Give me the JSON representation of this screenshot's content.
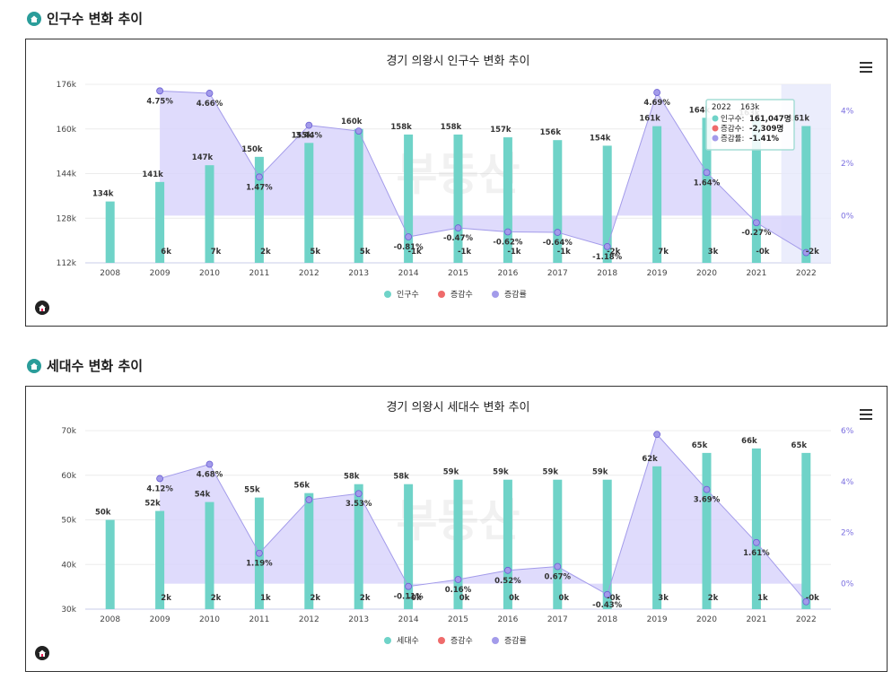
{
  "sections": [
    {
      "title": "인구수 변화 추이"
    },
    {
      "title": "세대수 변화 추이"
    }
  ],
  "watermark": "부동산",
  "colors": {
    "bar": "#6fd3c8",
    "change": "#ef6b6b",
    "rate": "#a39bea",
    "rate_fill": "#d9d5fb",
    "icon": "#2a9d9a"
  },
  "chart_data": [
    {
      "type": "bar",
      "title": "경기 의왕시 인구수 변화 추이",
      "categories": [
        "2008",
        "2009",
        "2010",
        "2011",
        "2012",
        "2013",
        "2014",
        "2015",
        "2016",
        "2017",
        "2018",
        "2019",
        "2020",
        "2021",
        "2022"
      ],
      "series": [
        {
          "name": "인구수",
          "type": "bar",
          "axis": "left",
          "values": [
            134000,
            141000,
            147000,
            150000,
            155000,
            160000,
            158000,
            158000,
            157000,
            156000,
            154000,
            161000,
            164000,
            163000,
            161047
          ],
          "labels": [
            "134k",
            "141k",
            "147k",
            "150k",
            "155k",
            "160k",
            "158k",
            "158k",
            "157k",
            "156k",
            "154k",
            "161k",
            "164k",
            "163k",
            "161k"
          ]
        },
        {
          "name": "증감수",
          "type": "label",
          "labels": [
            "",
            "6k",
            "7k",
            "2k",
            "5k",
            "5k",
            "-1k",
            "-1k",
            "-1k",
            "-1k",
            "-2k",
            "7k",
            "3k",
            "-0k",
            "-2k"
          ]
        },
        {
          "name": "증감률",
          "type": "area",
          "axis": "right",
          "values": [
            null,
            4.75,
            4.66,
            1.47,
            3.44,
            3.22,
            -0.81,
            -0.47,
            -0.62,
            -0.64,
            -1.18,
            4.69,
            1.64,
            -0.27,
            -1.41
          ],
          "labels": [
            "",
            "4.75%",
            "4.66%",
            "1.47%",
            "3.44%",
            "",
            "-0.81%",
            "-0.47%",
            "-0.62%",
            "-0.64%",
            "-1.18%",
            "4.69%",
            "1.64%",
            "-0.27%",
            ""
          ]
        }
      ],
      "yleft": {
        "min": 112000,
        "max": 176000,
        "ticks": [
          "112k",
          "128k",
          "144k",
          "160k",
          "176k"
        ]
      },
      "yright": {
        "min": -1.8,
        "max": 5.0,
        "ticks": [
          "0%",
          "2%",
          "4%"
        ],
        "tick_values": [
          0,
          2,
          4
        ]
      },
      "tooltip": {
        "category": "2022",
        "header": "2022",
        "extra": "163k",
        "rows": [
          {
            "label": "인구수: ",
            "value": "161,047명"
          },
          {
            "label": "증감수: ",
            "value": "-2,309명"
          },
          {
            "label": "증감률: ",
            "value": "-1.41%"
          }
        ]
      },
      "legend": [
        "인구수",
        "증감수",
        "증감률"
      ]
    },
    {
      "type": "bar",
      "title": "경기 의왕시 세대수 변화 추이",
      "categories": [
        "2008",
        "2009",
        "2010",
        "2011",
        "2012",
        "2013",
        "2014",
        "2015",
        "2016",
        "2017",
        "2018",
        "2019",
        "2020",
        "2021",
        "2022"
      ],
      "series": [
        {
          "name": "세대수",
          "type": "bar",
          "axis": "left",
          "values": [
            50000,
            52000,
            54000,
            55000,
            56000,
            58000,
            58000,
            59000,
            59000,
            59000,
            59000,
            62000,
            65000,
            66000,
            65000
          ],
          "labels": [
            "50k",
            "52k",
            "54k",
            "55k",
            "56k",
            "58k",
            "58k",
            "59k",
            "59k",
            "59k",
            "59k",
            "62k",
            "65k",
            "66k",
            "65k"
          ]
        },
        {
          "name": "증감수",
          "type": "label",
          "labels": [
            "",
            "2k",
            "2k",
            "1k",
            "2k",
            "2k",
            "-0k",
            "0k",
            "0k",
            "0k",
            "-0k",
            "3k",
            "2k",
            "1k",
            "-0k"
          ]
        },
        {
          "name": "증감률",
          "type": "area",
          "axis": "right",
          "values": [
            null,
            4.12,
            4.68,
            1.19,
            3.29,
            3.53,
            -0.11,
            0.16,
            0.52,
            0.67,
            -0.43,
            5.85,
            3.69,
            1.61,
            -0.71
          ],
          "labels": [
            "",
            "4.12%",
            "4.68%",
            "1.19%",
            "",
            "3.53%",
            "-0.11%",
            "0.16%",
            "0.52%",
            "0.67%",
            "-0.43%",
            "",
            "3.69%",
            "1.61%",
            ""
          ]
        }
      ],
      "yleft": {
        "min": 30000,
        "max": 70000,
        "ticks": [
          "30k",
          "40k",
          "50k",
          "60k",
          "70k"
        ]
      },
      "yright": {
        "min": -1.0,
        "max": 6.0,
        "ticks": [
          "0%",
          "2%",
          "4%",
          "6%"
        ],
        "tick_values": [
          0,
          2,
          4,
          6
        ]
      },
      "legend": [
        "세대수",
        "증감수",
        "증감률"
      ]
    }
  ]
}
